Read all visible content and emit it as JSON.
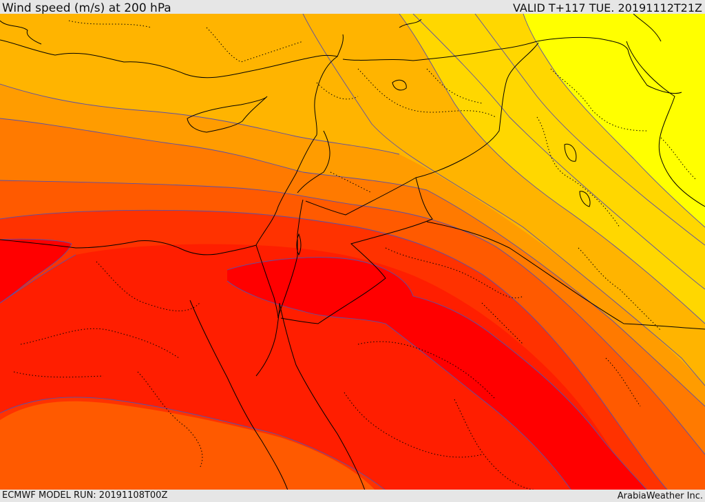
{
  "header": {
    "title": "Wind speed (m/s) at 200 hPa",
    "valid_time": "VALID T+117 TUE. 20191112T21Z"
  },
  "footer": {
    "model_run": "ECMWF MODEL RUN: 20191108T00Z",
    "credit": "ArabiaWeather Inc."
  },
  "map": {
    "variable": "wind speed",
    "level": "200 hPa",
    "units": "m/s",
    "colors": {
      "band_1": "#ffff00",
      "band_2": "#ffd700",
      "band_3": "#ffb400",
      "band_4": "#ff9c00",
      "band_5": "#ff7a00",
      "band_6": "#ff5a00",
      "band_7": "#ff3200",
      "band_8": "#ff1e00",
      "band_9": "#ff0000",
      "contour_line": "#5a50a8",
      "coastline": "#000000",
      "border": "#000000",
      "admin_border": "#000000"
    }
  }
}
